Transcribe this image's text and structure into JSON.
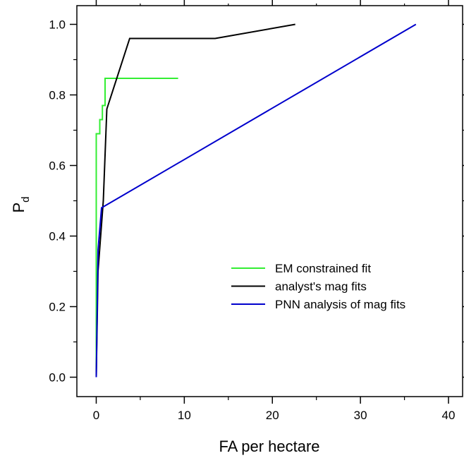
{
  "chart_data": {
    "type": "line",
    "xlabel": "FA per hectare",
    "ylabel": "P",
    "ylabel_subscript": "d",
    "xlim": [
      -2.2,
      41.6
    ],
    "ylim": [
      -0.055,
      1.053
    ],
    "xticks": [
      0,
      10,
      20,
      30,
      40
    ],
    "xtick_labels": [
      "0",
      "10",
      "20",
      "30",
      "40"
    ],
    "yticks": [
      0.0,
      0.2,
      0.4,
      0.6,
      0.8,
      1.0
    ],
    "ytick_labels": [
      "0.0",
      "0.2",
      "0.4",
      "0.6",
      "0.8",
      "1.0"
    ],
    "x_minor_ticks": [
      5,
      15,
      25,
      35
    ],
    "y_minor_ticks": [
      0.1,
      0.3,
      0.5,
      0.7,
      0.9
    ],
    "grid": false,
    "legend_position": "lower-right",
    "series": [
      {
        "name": "EM constrained fit",
        "color": "#33ee33",
        "points": [
          [
            0,
            0
          ],
          [
            0,
            0.69
          ],
          [
            0.4,
            0.69
          ],
          [
            0.4,
            0.73
          ],
          [
            0.7,
            0.73
          ],
          [
            0.7,
            0.77
          ],
          [
            1.0,
            0.77
          ],
          [
            1.0,
            0.847
          ],
          [
            9.3,
            0.847
          ]
        ]
      },
      {
        "name": "analyst's mag fits",
        "color": "#000000",
        "points": [
          [
            0,
            0
          ],
          [
            0.2,
            0.3
          ],
          [
            0.8,
            0.5
          ],
          [
            1.2,
            0.76
          ],
          [
            3.8,
            0.96
          ],
          [
            13.5,
            0.96
          ],
          [
            22.6,
            1.0
          ]
        ]
      },
      {
        "name": "PNN analysis of mag fits",
        "color": "#0000cc",
        "points": [
          [
            0,
            0
          ],
          [
            0.2,
            0.36
          ],
          [
            0.6,
            0.48
          ],
          [
            36.3,
            1.0
          ]
        ]
      }
    ]
  }
}
